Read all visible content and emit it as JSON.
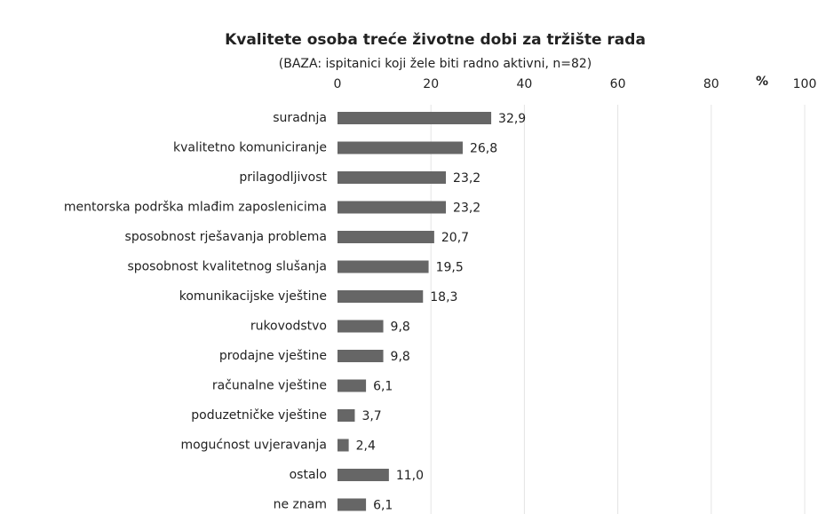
{
  "chart_data": {
    "type": "barh",
    "title": "Kvalitete osoba treće životne dobi za tržište rada",
    "subtitle": "(BAZA: ispitanici koji žele biti radno aktivni, n=82)",
    "xlabel": "%",
    "categories": [
      "suradnja",
      "kvalitetno komuniciranje",
      "prilagodljivost",
      "mentorska podrška mlađim zaposlenicima",
      "sposobnost rješavanja problema",
      "sposobnost kvalitetnog slušanja",
      "komunikacijske vještine",
      "rukovodstvo",
      "prodajne vještine",
      "računalne vještine",
      "poduzetničke vještine",
      "mogućnost uvjeravanja",
      "ostalo",
      "ne znam"
    ],
    "values": [
      32.9,
      26.8,
      23.2,
      23.2,
      20.7,
      19.5,
      18.3,
      9.8,
      9.8,
      6.1,
      3.7,
      2.4,
      11.0,
      6.1
    ],
    "value_labels": [
      "32,9",
      "26,8",
      "23,2",
      "23,2",
      "20,7",
      "19,5",
      "18,3",
      "9,8",
      "9,8",
      "6,1",
      "3,7",
      "2,4",
      "11,0",
      "6,1"
    ],
    "color": "#666666",
    "xlim": [
      0,
      100
    ],
    "xticks": [
      0,
      20,
      40,
      60,
      80,
      100
    ],
    "grid": true
  }
}
